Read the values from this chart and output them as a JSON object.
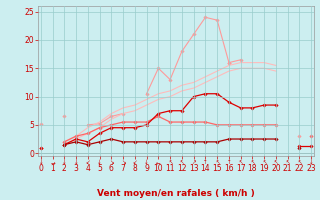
{
  "x": [
    0,
    1,
    2,
    3,
    4,
    5,
    6,
    7,
    8,
    9,
    10,
    11,
    12,
    13,
    14,
    15,
    16,
    17,
    18,
    19,
    20,
    21,
    22,
    23
  ],
  "series": [
    {
      "name": "light_pink_marker",
      "color": "#ff9999",
      "linewidth": 0.8,
      "marker": "D",
      "markersize": 1.8,
      "y": [
        5.2,
        null,
        6.5,
        null,
        5.0,
        5.2,
        6.5,
        7.0,
        null,
        10.5,
        15.0,
        13.0,
        18.0,
        21.0,
        24.0,
        23.5,
        16.0,
        null,
        null,
        null,
        null,
        null,
        null,
        null
      ]
    },
    {
      "name": "light_pink_right",
      "color": "#ff9999",
      "linewidth": 0.8,
      "marker": "D",
      "markersize": 1.8,
      "y": [
        null,
        null,
        null,
        null,
        null,
        null,
        null,
        null,
        null,
        null,
        null,
        null,
        null,
        null,
        null,
        null,
        16.0,
        16.5,
        null,
        null,
        null,
        null,
        3.0,
        null
      ]
    },
    {
      "name": "very_light_upper",
      "color": "#ffbbbb",
      "linewidth": 0.8,
      "marker": null,
      "markersize": 0,
      "y": [
        null,
        null,
        2.0,
        3.0,
        4.5,
        5.5,
        7.0,
        8.0,
        8.5,
        9.5,
        10.5,
        11.0,
        12.0,
        12.5,
        13.5,
        14.5,
        15.5,
        16.0,
        16.0,
        16.0,
        15.5,
        null,
        null,
        null
      ]
    },
    {
      "name": "very_light_lower",
      "color": "#ffbbbb",
      "linewidth": 0.8,
      "marker": null,
      "markersize": 0,
      "y": [
        null,
        null,
        1.5,
        2.5,
        3.5,
        4.5,
        6.0,
        7.0,
        7.5,
        8.5,
        9.5,
        10.0,
        11.0,
        11.5,
        12.5,
        13.5,
        14.5,
        15.0,
        15.0,
        15.0,
        14.5,
        null,
        null,
        null
      ]
    },
    {
      "name": "medium_red_marker",
      "color": "#ff6666",
      "linewidth": 0.9,
      "marker": "D",
      "markersize": 1.8,
      "y": [
        1.0,
        null,
        2.0,
        3.0,
        3.5,
        4.5,
        5.0,
        5.5,
        5.5,
        5.5,
        6.5,
        5.5,
        5.5,
        5.5,
        5.5,
        5.0,
        5.0,
        5.0,
        5.0,
        5.0,
        5.0,
        null,
        null,
        3.0
      ]
    },
    {
      "name": "dark_red_marker",
      "color": "#dd0000",
      "linewidth": 0.9,
      "marker": "D",
      "markersize": 1.8,
      "y": [
        1.0,
        null,
        1.5,
        2.5,
        2.0,
        3.5,
        4.5,
        4.5,
        4.5,
        5.0,
        7.0,
        7.5,
        7.5,
        10.0,
        10.5,
        10.5,
        9.0,
        8.0,
        8.0,
        8.5,
        8.5,
        null,
        1.2,
        1.2
      ]
    },
    {
      "name": "darkest_red_marker",
      "color": "#aa0000",
      "linewidth": 0.9,
      "marker": "D",
      "markersize": 1.8,
      "y": [
        null,
        null,
        1.5,
        2.0,
        1.5,
        2.0,
        2.5,
        2.0,
        2.0,
        2.0,
        2.0,
        2.0,
        2.0,
        2.0,
        2.0,
        2.0,
        2.5,
        2.5,
        2.5,
        2.5,
        2.5,
        null,
        1.0,
        null
      ]
    }
  ],
  "xlabel": "Vent moyen/en rafales ( km/h )",
  "xlim": [
    -0.2,
    23.2
  ],
  "ylim": [
    -0.5,
    26
  ],
  "yticks": [
    0,
    5,
    10,
    15,
    20,
    25
  ],
  "xticks": [
    0,
    1,
    2,
    3,
    4,
    5,
    6,
    7,
    8,
    9,
    10,
    11,
    12,
    13,
    14,
    15,
    16,
    17,
    18,
    19,
    20,
    21,
    22,
    23
  ],
  "background_color": "#cceef0",
  "grid_color": "#99cccc",
  "xlabel_color": "#cc0000",
  "xlabel_fontsize": 6.5,
  "tick_fontsize": 5.5,
  "tick_color": "#cc0000",
  "arrow_symbols": [
    "↓",
    "→",
    "↓",
    "↓",
    "↙",
    "↓",
    "↘",
    "↘",
    "↙",
    "↓",
    "←",
    "↖",
    "↖",
    "↗",
    "↑",
    "↖",
    "↑",
    "↖",
    "↖",
    "↖",
    "↖",
    "↖",
    "↖",
    "↓"
  ]
}
